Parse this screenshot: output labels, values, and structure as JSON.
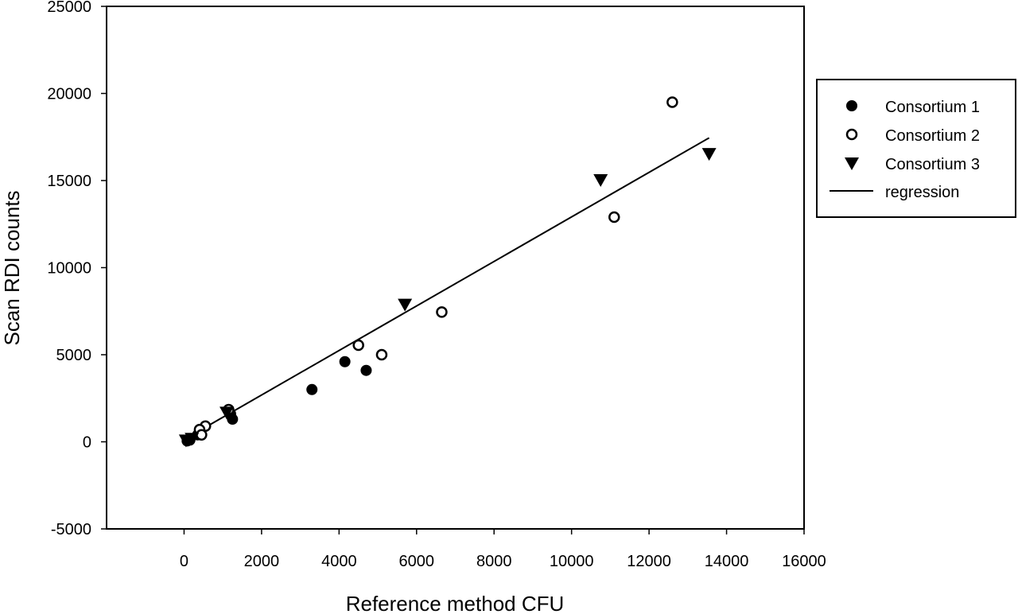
{
  "chart_data": {
    "type": "scatter",
    "title": "",
    "xlabel": "Reference method CFU",
    "ylabel": "Scan RDI counts",
    "xlim": [
      -2000,
      16000
    ],
    "ylim": [
      -5000,
      25000
    ],
    "x_ticks": [
      0,
      2000,
      4000,
      6000,
      8000,
      10000,
      12000,
      14000,
      16000
    ],
    "y_ticks": [
      -5000,
      0,
      5000,
      10000,
      15000,
      20000,
      25000
    ],
    "x_tick_labels": [
      "0",
      "2000",
      "4000",
      "6000",
      "8000",
      "10000",
      "12000",
      "14000",
      "16000"
    ],
    "y_tick_labels": [
      "-5000",
      "0",
      "5000",
      "10000",
      "15000",
      "20000",
      "25000"
    ],
    "grid": false,
    "legend_position": "right",
    "series": [
      {
        "name": "Consortium 1",
        "marker": "filled-circle",
        "color": "#000000",
        "points": [
          {
            "x": 3300,
            "y": 3000
          },
          {
            "x": 4150,
            "y": 4600
          },
          {
            "x": 4700,
            "y": 4100
          },
          {
            "x": 1250,
            "y": 1300
          },
          {
            "x": 1200,
            "y": 1600
          },
          {
            "x": 350,
            "y": 400
          },
          {
            "x": 150,
            "y": 100
          },
          {
            "x": 80,
            "y": 50
          }
        ]
      },
      {
        "name": "Consortium 2",
        "marker": "open-circle",
        "color": "#000000",
        "points": [
          {
            "x": 12600,
            "y": 19500
          },
          {
            "x": 11100,
            "y": 12900
          },
          {
            "x": 6650,
            "y": 7450
          },
          {
            "x": 4500,
            "y": 5550
          },
          {
            "x": 5100,
            "y": 5000
          },
          {
            "x": 1150,
            "y": 1850
          },
          {
            "x": 550,
            "y": 900
          },
          {
            "x": 400,
            "y": 700
          },
          {
            "x": 450,
            "y": 400
          }
        ]
      },
      {
        "name": "Consortium 3",
        "marker": "filled-triangle-down",
        "color": "#000000",
        "points": [
          {
            "x": 10750,
            "y": 15000
          },
          {
            "x": 13550,
            "y": 16500
          },
          {
            "x": 5700,
            "y": 7850
          },
          {
            "x": 1100,
            "y": 1650
          },
          {
            "x": 200,
            "y": 150
          },
          {
            "x": 50,
            "y": 50
          }
        ]
      }
    ],
    "regression": {
      "name": "regression",
      "x": [
        0,
        13550
      ],
      "y": [
        130,
        17450
      ]
    }
  }
}
